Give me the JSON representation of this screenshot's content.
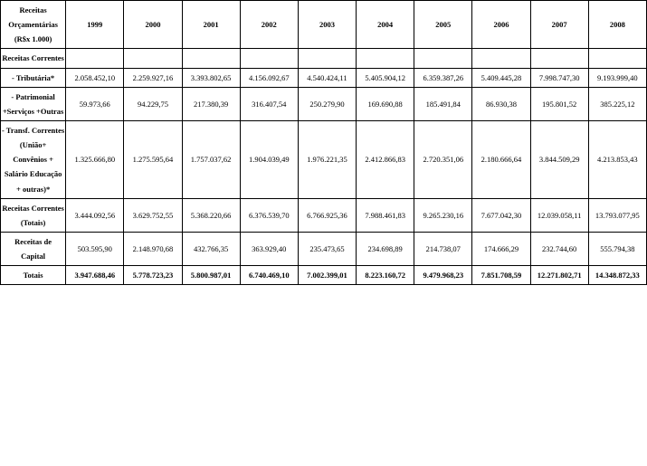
{
  "header": {
    "rowLabel": "Receitas Orçamentárias (R$x 1.000)",
    "years": [
      "1999",
      "2000",
      "2001",
      "2002",
      "2003",
      "2004",
      "2005",
      "2006",
      "2007",
      "2008"
    ]
  },
  "rows": [
    {
      "label": "Receitas Correntes",
      "values": [
        "",
        "",
        "",
        "",
        "",
        "",
        "",
        "",
        "",
        ""
      ],
      "boldValues": false
    },
    {
      "label": "- Tributária*",
      "values": [
        "2.058.452,10",
        "2.259.927,16",
        "3.393.802,65",
        "4.156.092,67",
        "4.540.424,11",
        "5.405.904,12",
        "6.359.387,26",
        "5.409.445,28",
        "7.998.747,30",
        "9.193.999,40"
      ],
      "boldValues": false
    },
    {
      "label": "- Patrimonial +Serviços +Outras",
      "values": [
        "59.973,66",
        "94.229,75",
        "217.380,39",
        "316.407,54",
        "250.279,90",
        "169.690,88",
        "185.491,84",
        "86.930,38",
        "195.801,52",
        "385.225,12"
      ],
      "boldValues": false
    },
    {
      "label": "- Transf. Correntes (União+ Convênios + Salário Educação + outras)*",
      "values": [
        "1.325.666,80",
        "1.275.595,64",
        "1.757.037,62",
        "1.904.039,49",
        "1.976.221,35",
        "2.412.866,83",
        "2.720.351,06",
        "2.180.666,64",
        "3.844.509,29",
        "4.213.853,43"
      ],
      "boldValues": false
    },
    {
      "label": "Receitas Correntes (Totais)",
      "values": [
        "3.444.092,56",
        "3.629.752,55",
        "5.368.220,66",
        "6.376.539,70",
        "6.766.925,36",
        "7.988.461,83",
        "9.265.230,16",
        "7.677.042,30",
        "12.039.058,11",
        "13.793.077,95"
      ],
      "boldValues": false
    },
    {
      "label": "Receitas de Capital",
      "values": [
        "503.595,90",
        "2.148.970,68",
        "432.766,35",
        "363.929,40",
        "235.473,65",
        "234.698,89",
        "214.738,07",
        "174.666,29",
        "232.744,60",
        "555.794,38"
      ],
      "boldValues": false
    },
    {
      "label": "Totais",
      "values": [
        "3.947.688,46",
        "5.778.723,23",
        "5.800.987,01",
        "6.740.469,10",
        "7.002.399,01",
        "8.223.160,72",
        "9.479.968,23",
        "7.851.708,59",
        "12.271.802,71",
        "14.348.872,33"
      ],
      "boldValues": true
    }
  ]
}
